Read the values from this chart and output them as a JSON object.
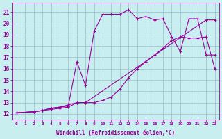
{
  "xlabel": "Windchill (Refroidissement éolien,°C)",
  "bg_color": "#c8eef0",
  "line_color": "#990099",
  "grid_color": "#99bbcc",
  "xlim": [
    -0.5,
    23.5
  ],
  "ylim": [
    11.5,
    21.8
  ],
  "xticks": [
    0,
    1,
    2,
    3,
    4,
    5,
    6,
    7,
    8,
    9,
    10,
    11,
    12,
    13,
    14,
    15,
    16,
    17,
    18,
    19,
    20,
    21,
    22,
    23
  ],
  "yticks": [
    12,
    13,
    14,
    15,
    16,
    17,
    18,
    19,
    20,
    21
  ],
  "line1_x": [
    0,
    2,
    3,
    4,
    5,
    6,
    7,
    8,
    9,
    10,
    11,
    12,
    13,
    14,
    15,
    16,
    17,
    18,
    19,
    20,
    21,
    22,
    23
  ],
  "line1_y": [
    12.1,
    12.2,
    12.3,
    12.5,
    12.6,
    12.7,
    16.6,
    14.5,
    19.3,
    20.8,
    20.8,
    20.8,
    21.2,
    20.4,
    20.6,
    20.3,
    20.4,
    18.8,
    17.5,
    20.4,
    20.4,
    17.2,
    17.2
  ],
  "line2_x": [
    0,
    2,
    3,
    4,
    5,
    6,
    7,
    8,
    9,
    10,
    11,
    12,
    13,
    14,
    15,
    16,
    17,
    18,
    19,
    20,
    21,
    22,
    23
  ],
  "line2_y": [
    12.1,
    12.2,
    12.3,
    12.5,
    12.6,
    12.8,
    13.0,
    13.0,
    13.0,
    13.2,
    13.5,
    14.2,
    15.2,
    16.0,
    16.6,
    17.2,
    17.8,
    18.5,
    18.8,
    18.7,
    18.7,
    18.8,
    16.0
  ],
  "line3_x": [
    0,
    2,
    3,
    4,
    5,
    6,
    7,
    8,
    22,
    23
  ],
  "line3_y": [
    12.1,
    12.2,
    12.3,
    12.4,
    12.5,
    12.6,
    13.0,
    13.0,
    20.3,
    20.3
  ]
}
